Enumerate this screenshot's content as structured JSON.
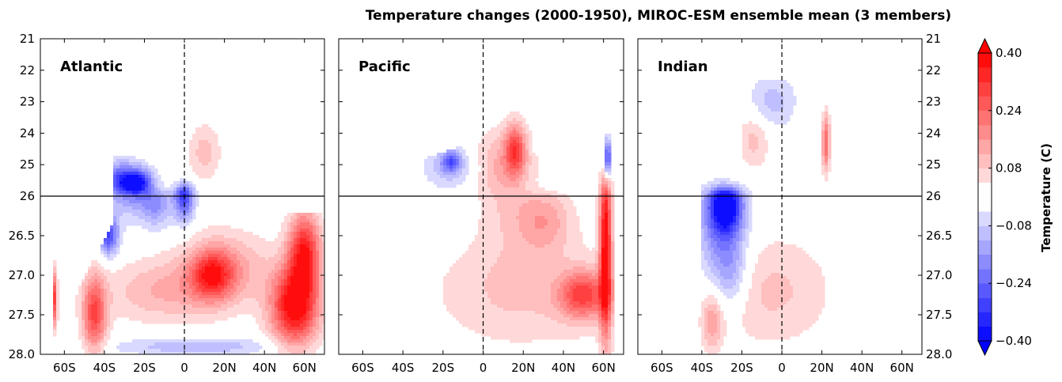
{
  "chart_data": {
    "type": "heatmap",
    "title": "Temperature changes (2000-1950), MIROC-ESM ensemble mean (3 members)",
    "x": {
      "range": [
        -72,
        70
      ],
      "ticks": [
        -60,
        -40,
        -20,
        0,
        20,
        40,
        60
      ],
      "tick_labels": [
        "60S",
        "40S",
        "20S",
        "0",
        "20N",
        "40N",
        "60N"
      ]
    },
    "y": {
      "upper_range": [
        21,
        26
      ],
      "upper_ticks": [
        21,
        22,
        23,
        24,
        25,
        26
      ],
      "upper_tick_labels": [
        "21",
        "22",
        "23",
        "24",
        "25",
        "26"
      ],
      "lower_range": [
        26,
        28
      ],
      "lower_ticks": [
        26.5,
        27.0,
        27.5,
        28.0
      ],
      "lower_tick_labels": [
        "26.5",
        "27.0",
        "27.5",
        "28.0"
      ],
      "reference_line": 26,
      "equator_line": 0
    },
    "panels": [
      {
        "name": "Atlantic",
        "blobs": [
          {
            "lat": -32,
            "y": 25.5,
            "rx": 12,
            "ry": 0.6,
            "v": -0.24
          },
          {
            "lat": -24,
            "y": 25.6,
            "rx": 8,
            "ry": 0.4,
            "v": -0.32
          },
          {
            "lat": -38,
            "y": 26.5,
            "rx": 5,
            "ry": 0.25,
            "v": -0.28
          },
          {
            "lat": 0,
            "y": 25.95,
            "rx": 5,
            "ry": 0.35,
            "v": -0.32
          },
          {
            "lat": -14,
            "y": 26.1,
            "rx": 8,
            "ry": 0.3,
            "v": -0.16
          },
          {
            "lat": 14,
            "y": 27.0,
            "rx": 10,
            "ry": 0.3,
            "v": 0.24
          },
          {
            "lat": 20,
            "y": 26.9,
            "rx": 22,
            "ry": 0.45,
            "v": 0.14
          },
          {
            "lat": 55,
            "y": 27.4,
            "rx": 12,
            "ry": 0.5,
            "v": 0.4
          },
          {
            "lat": 60,
            "y": 26.7,
            "rx": 8,
            "ry": 0.5,
            "v": 0.34
          },
          {
            "lat": -45,
            "y": 27.5,
            "rx": 6,
            "ry": 0.5,
            "v": 0.28
          },
          {
            "lat": -66,
            "y": 27.3,
            "rx": 2,
            "ry": 0.35,
            "v": 0.4
          },
          {
            "lat": 10,
            "y": 24.6,
            "rx": 8,
            "ry": 0.9,
            "v": 0.1
          },
          {
            "lat": -10,
            "y": 27.2,
            "rx": 30,
            "ry": 0.4,
            "v": 0.12
          },
          {
            "lat": 5,
            "y": 27.9,
            "rx": 40,
            "ry": 0.12,
            "v": -0.12
          }
        ]
      },
      {
        "name": "Pacific",
        "blobs": [
          {
            "lat": -16,
            "y": 25.1,
            "rx": 14,
            "ry": 0.7,
            "v": -0.1
          },
          {
            "lat": -16,
            "y": 24.9,
            "rx": 5,
            "ry": 0.35,
            "v": -0.2
          },
          {
            "lat": 16,
            "y": 24.5,
            "rx": 5,
            "ry": 0.8,
            "v": 0.24
          },
          {
            "lat": 10,
            "y": 25.1,
            "rx": 15,
            "ry": 1.2,
            "v": 0.14
          },
          {
            "lat": 50,
            "y": 27.25,
            "rx": 12,
            "ry": 0.3,
            "v": 0.26
          },
          {
            "lat": 61,
            "y": 26.6,
            "rx": 3,
            "ry": 1.2,
            "v": 0.4
          },
          {
            "lat": 62,
            "y": 24.8,
            "rx": 1.5,
            "ry": 0.6,
            "v": -0.34
          },
          {
            "lat": 20,
            "y": 27.2,
            "rx": 45,
            "ry": 0.7,
            "v": 0.09
          },
          {
            "lat": 30,
            "y": 26.3,
            "rx": 14,
            "ry": 0.4,
            "v": 0.14
          }
        ]
      },
      {
        "name": "Indian",
        "blobs": [
          {
            "lat": -28,
            "y": 26.1,
            "rx": 8,
            "ry": 0.35,
            "v": -0.34
          },
          {
            "lat": -30,
            "y": 26.4,
            "rx": 12,
            "ry": 0.7,
            "v": -0.2
          },
          {
            "lat": -25,
            "y": 27.0,
            "rx": 8,
            "ry": 0.4,
            "v": -0.1
          },
          {
            "lat": -5,
            "y": 23.0,
            "rx": 12,
            "ry": 0.9,
            "v": -0.1
          },
          {
            "lat": 22,
            "y": 24.3,
            "rx": 2,
            "ry": 0.9,
            "v": 0.24
          },
          {
            "lat": -14,
            "y": 24.2,
            "rx": 8,
            "ry": 0.9,
            "v": 0.1
          },
          {
            "lat": -35,
            "y": 27.6,
            "rx": 5,
            "ry": 0.35,
            "v": 0.14
          },
          {
            "lat": -5,
            "y": 27.2,
            "rx": 30,
            "ry": 0.7,
            "v": 0.09
          }
        ]
      }
    ],
    "colorbar": {
      "label": "Temperature (C)",
      "range": [
        -0.4,
        0.4
      ],
      "ticks": [
        -0.4,
        -0.24,
        -0.08,
        0.08,
        0.24,
        0.4
      ],
      "tick_labels": [
        "−0.40",
        "−0.24",
        "−0.08",
        "0.08",
        "0.24",
        "0.40"
      ],
      "levels": 20,
      "extend": "both",
      "colormap": "bwr",
      "negative_color": "#0000ff",
      "positive_color": "#ff0000"
    }
  }
}
